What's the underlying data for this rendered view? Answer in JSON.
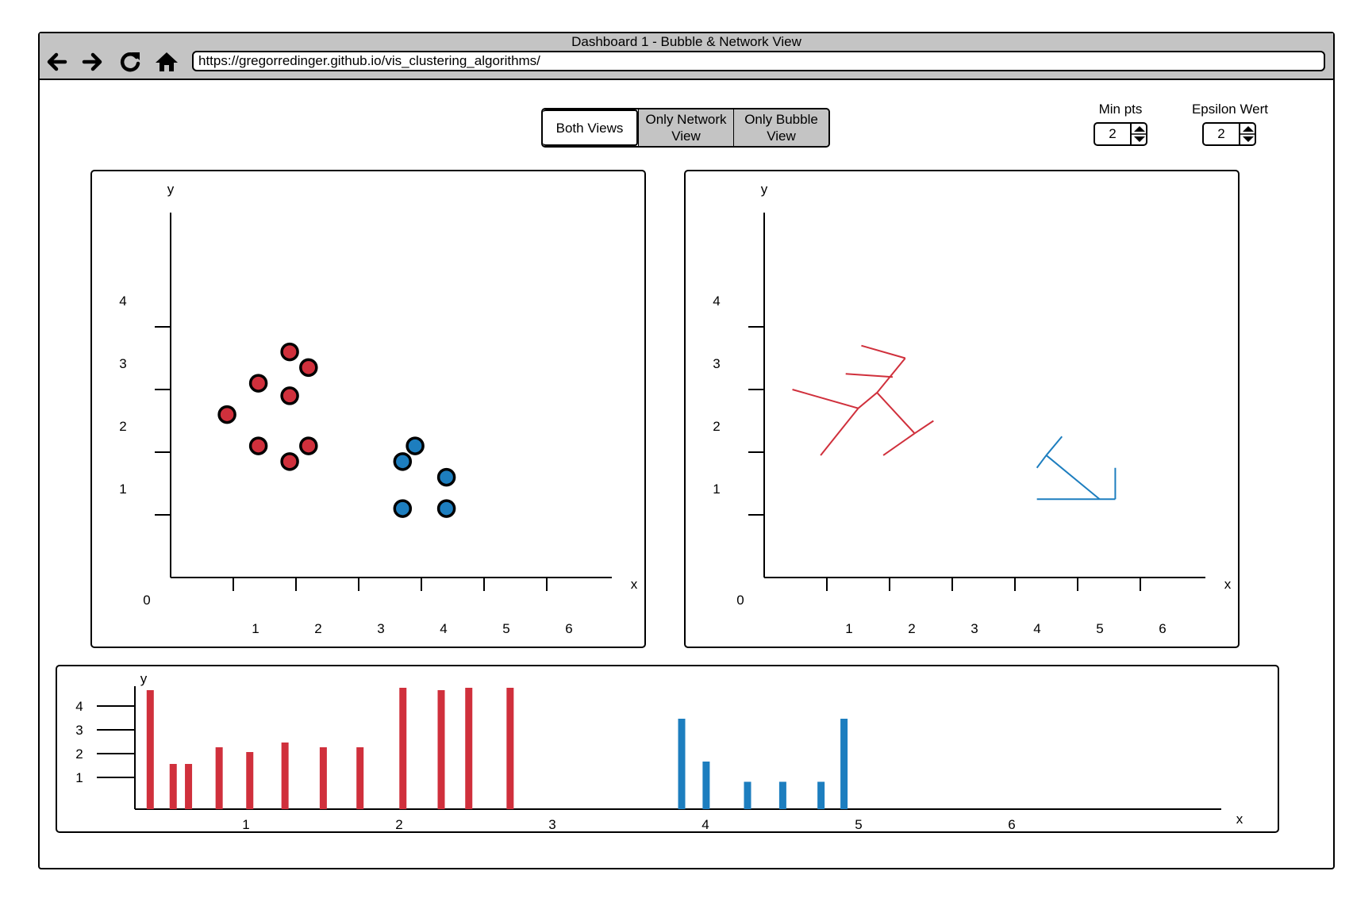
{
  "window": {
    "title": "Dashboard 1 - Bubble & Network View",
    "url": "https://gregorredinger.github.io/vis_clustering_algorithms/",
    "nav_icons": [
      "back-arrow-icon",
      "forward-arrow-icon",
      "reload-icon",
      "home-icon"
    ]
  },
  "view_tabs": [
    {
      "label": "Both Views",
      "active": true
    },
    {
      "label": "Only Network View",
      "active": false
    },
    {
      "label": "Only Bubble View",
      "active": false
    }
  ],
  "controls": {
    "min_pts": {
      "label": "Min pts",
      "value": "2"
    },
    "epsilon": {
      "label": "Epsilon Wert",
      "value": "2"
    }
  },
  "colors": {
    "cluster_red": "#d0303c",
    "cluster_blue": "#1d7ebf"
  },
  "chart_data": [
    {
      "type": "scatter",
      "title": "",
      "xlabel": "x",
      "ylabel": "y",
      "origin_label": "0",
      "x_ticks": [
        "1",
        "2",
        "3",
        "4",
        "5",
        "6"
      ],
      "y_ticks": [
        "1",
        "2",
        "3",
        "4"
      ],
      "series": [
        {
          "color": "red",
          "points": [
            [
              1.9,
              3.6
            ],
            [
              2.2,
              3.35
            ],
            [
              1.4,
              3.1
            ],
            [
              1.9,
              2.9
            ],
            [
              0.9,
              2.6
            ],
            [
              1.4,
              2.1
            ],
            [
              2.2,
              2.1
            ],
            [
              1.9,
              1.85
            ]
          ]
        },
        {
          "color": "blue",
          "points": [
            [
              3.9,
              2.1
            ],
            [
              3.7,
              1.85
            ],
            [
              4.4,
              1.6
            ],
            [
              3.7,
              1.1
            ],
            [
              4.4,
              1.1
            ]
          ]
        }
      ]
    },
    {
      "type": "network",
      "title": "",
      "xlabel": "x",
      "ylabel": "y",
      "origin_label": "0",
      "x_ticks": [
        "1",
        "2",
        "3",
        "4",
        "5",
        "6"
      ],
      "y_ticks": [
        "1",
        "2",
        "3",
        "4"
      ],
      "edges": [
        {
          "color": "red",
          "from": [
            0.9,
            1.95
          ],
          "to": [
            1.5,
            2.7
          ]
        },
        {
          "color": "red",
          "from": [
            1.5,
            2.7
          ],
          "to": [
            1.8,
            2.95
          ]
        },
        {
          "color": "red",
          "from": [
            1.8,
            2.95
          ],
          "to": [
            2.25,
            3.5
          ]
        },
        {
          "color": "red",
          "from": [
            1.8,
            2.95
          ],
          "to": [
            2.4,
            2.3
          ]
        },
        {
          "color": "red",
          "from": [
            0.45,
            3.0
          ],
          "to": [
            1.5,
            2.7
          ]
        },
        {
          "color": "red",
          "from": [
            1.3,
            3.25
          ],
          "to": [
            2.05,
            3.2
          ]
        },
        {
          "color": "red",
          "from": [
            1.55,
            3.7
          ],
          "to": [
            2.25,
            3.5
          ]
        },
        {
          "color": "red",
          "from": [
            1.9,
            1.95
          ],
          "to": [
            2.4,
            2.3
          ]
        },
        {
          "color": "red",
          "from": [
            2.4,
            2.3
          ],
          "to": [
            2.7,
            2.5
          ]
        },
        {
          "color": "blue",
          "from": [
            4.35,
            1.75
          ],
          "to": [
            4.5,
            1.95
          ]
        },
        {
          "color": "blue",
          "from": [
            4.5,
            1.95
          ],
          "to": [
            4.75,
            2.25
          ]
        },
        {
          "color": "blue",
          "from": [
            4.5,
            1.95
          ],
          "to": [
            5.35,
            1.25
          ]
        },
        {
          "color": "blue",
          "from": [
            4.35,
            1.25
          ],
          "to": [
            5.6,
            1.25
          ]
        },
        {
          "color": "blue",
          "from": [
            5.6,
            1.25
          ],
          "to": [
            5.6,
            1.75
          ]
        }
      ]
    },
    {
      "type": "bar",
      "title": "",
      "xlabel": "x",
      "ylabel": "y",
      "x_ticks": [
        "1",
        "2",
        "3",
        "4",
        "5",
        "6"
      ],
      "y_ticks": [
        "1",
        "2",
        "3",
        "4"
      ],
      "series": [
        {
          "color": "red",
          "x": [
            1.1,
            1.25,
            1.35,
            1.55,
            1.75,
            1.98,
            2.23,
            2.47,
            2.75,
            3.0,
            3.18,
            3.45
          ],
          "values": [
            5.0,
            1.9,
            1.9,
            2.6,
            2.4,
            2.8,
            2.6,
            2.6,
            5.1,
            5.0,
            5.1,
            5.1
          ]
        },
        {
          "color": "blue",
          "x": [
            4.57,
            4.73,
            5.0,
            5.23,
            5.48,
            5.63
          ],
          "values": [
            3.8,
            2.0,
            1.15,
            1.15,
            1.15,
            3.8
          ]
        }
      ]
    }
  ]
}
